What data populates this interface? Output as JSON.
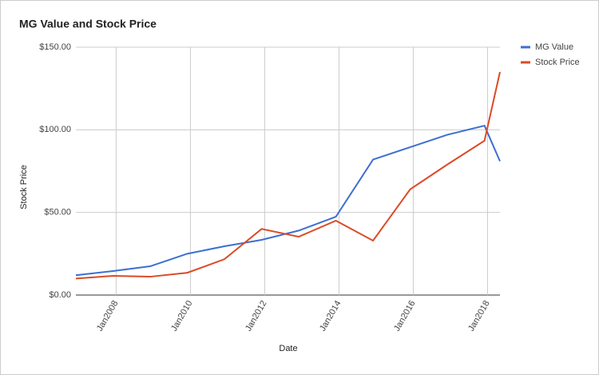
{
  "chart_data": {
    "type": "line",
    "title": "MG Value and Stock Price",
    "x_label": "Date",
    "y_label": "Stock Price",
    "x": [
      "2006-12",
      "2007-12",
      "2008-12",
      "2009-12",
      "2010-12",
      "2011-12",
      "2012-12",
      "2013-12",
      "2014-12",
      "2015-12",
      "2016-12",
      "2017-12",
      "2018-05"
    ],
    "series": [
      {
        "name": "MG Value",
        "color": "#3c6fd1",
        "values": [
          12,
          14.5,
          17.4,
          25,
          29.5,
          33.4,
          39,
          47.4,
          82,
          89.5,
          97,
          102.5,
          81
        ]
      },
      {
        "name": "Stock Price",
        "color": "#dc4a26",
        "values": [
          10,
          11.6,
          11.1,
          13.5,
          21.7,
          40,
          35.3,
          45,
          32.9,
          64,
          79,
          93.4,
          135
        ]
      }
    ],
    "xlim": [
      "2006-12",
      "2018-05"
    ],
    "xticks": [
      {
        "value": "2008-01",
        "label": "Jan2008"
      },
      {
        "value": "2010-01",
        "label": "Jan2010"
      },
      {
        "value": "2012-01",
        "label": "Jan2012"
      },
      {
        "value": "2014-01",
        "label": "Jan2014"
      },
      {
        "value": "2016-01",
        "label": "Jan2016"
      },
      {
        "value": "2018-01",
        "label": "Jan2018"
      }
    ],
    "ylim": [
      0,
      150
    ],
    "yticks": [
      {
        "value": 0,
        "label": "$0.00"
      },
      {
        "value": 50,
        "label": "$50.00"
      },
      {
        "value": 100,
        "label": "$100.00"
      },
      {
        "value": 150,
        "label": "$150.00"
      }
    ],
    "grid": true,
    "legend": "right"
  }
}
